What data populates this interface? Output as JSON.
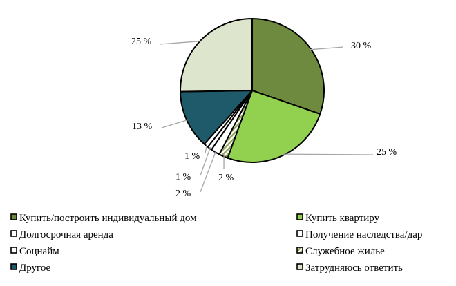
{
  "chart_data": {
    "type": "pie",
    "title": "",
    "legend_position": "bottom",
    "slices": [
      {
        "name": "Купить/построить индивидуальный дом",
        "value": 30,
        "label": "30 %",
        "color": "#6e8a3e",
        "pattern": "solid"
      },
      {
        "name": "Купить квартиру",
        "value": 25,
        "label": "25 %",
        "color": "#92d050",
        "pattern": "solid"
      },
      {
        "name": "Служебное жилье",
        "value": 2,
        "label": "2 %",
        "color": "#92a760",
        "pattern": "hatch"
      },
      {
        "name": "Получение наследства/дар",
        "value": 2,
        "label": "2 %",
        "color": "#ffffff",
        "pattern": "solid"
      },
      {
        "name": "Сoцнайм",
        "value": 1,
        "label": "1 %",
        "color": "#ffffff",
        "pattern": "solid"
      },
      {
        "name": "Долгосрочная аренда",
        "value": 1,
        "label": "1 %",
        "color": "#ffffff",
        "pattern": "solid"
      },
      {
        "name": "Другое",
        "value": 13,
        "label": "13 %",
        "color": "#1f5a6b",
        "pattern": "solid"
      },
      {
        "name": "Затрудняюсь ответить",
        "value": 25,
        "label": "25 %",
        "color": "#dde5cc",
        "pattern": "solid"
      }
    ],
    "legend": [
      {
        "name": "Купить/построить индивидуальный дом",
        "slice": 0
      },
      {
        "name": "Купить квартиру",
        "slice": 1
      },
      {
        "name": "Долгосрочная аренда",
        "slice": 5
      },
      {
        "name": "Получение наследства/дар",
        "slice": 3
      },
      {
        "name": "Сoцнайм",
        "slice": 4
      },
      {
        "name": "Служебное жилье",
        "slice": 2
      },
      {
        "name": "Другое",
        "slice": 6
      },
      {
        "name": "Затрудняюсь ответить",
        "slice": 7
      }
    ]
  }
}
